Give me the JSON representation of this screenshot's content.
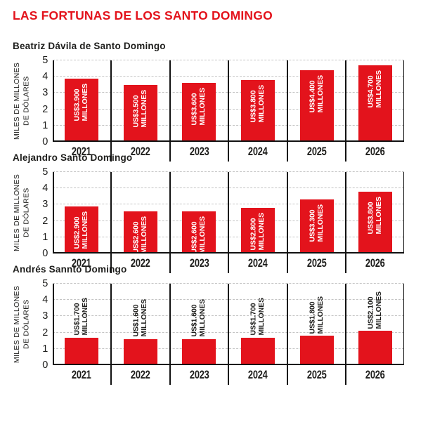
{
  "title": "LAS FORTUNAS DE LOS SANTO DOMINGO",
  "colors": {
    "accent_red": "#e3131c",
    "bar_red": "#e3131c",
    "grid": "#c4c4c4",
    "axis": "#111111",
    "text": "#1d1d1b",
    "bar_label_inside": "#ffffff",
    "bar_label_outside": "#1d1d1b"
  },
  "chart_data": [
    {
      "type": "bar",
      "title": "Beatriz Dávila de Santo Domingo",
      "categories": [
        "2021",
        "2022",
        "2023",
        "2024",
        "2025",
        "2026"
      ],
      "values": [
        3.9,
        3.5,
        3.6,
        3.8,
        4.4,
        4.7
      ],
      "bar_labels": [
        "US$3.900\nMILLONES",
        "US$3.500\nMILLONES",
        "US$3.600\nMILLONES",
        "US$3.800\nMILLONES",
        "US$4.400\nMILLONES",
        "US$4.700\nMILLONES"
      ],
      "value_label_position": "inside",
      "xlabel": "",
      "ylabel": "MILES DE MILLONES\nDE DÓLARES",
      "ylim": [
        0,
        5
      ],
      "yticks": [
        0,
        1,
        2,
        3,
        4,
        5
      ],
      "grid": "horizontal-dashed",
      "legend": "none"
    },
    {
      "type": "bar",
      "title": "Alejandro Santo Domingo",
      "categories": [
        "2021",
        "2022",
        "2023",
        "2024",
        "2025",
        "2026"
      ],
      "values": [
        2.9,
        2.6,
        2.6,
        2.8,
        3.3,
        3.8
      ],
      "bar_labels": [
        "US$2.900\nMILLONES",
        "US$2.600\nMILLONES",
        "US$2.600\nMILLONES",
        "US$2.800\nMILLONES",
        "US$3.300\nMILLONES",
        "US$3.800\nMILLONES"
      ],
      "value_label_position": "inside",
      "xlabel": "",
      "ylabel": "MILES DE MILLONES\nDE DÓLARES",
      "ylim": [
        0,
        5
      ],
      "yticks": [
        0,
        1,
        2,
        3,
        4,
        5
      ],
      "grid": "horizontal-dashed",
      "legend": "none"
    },
    {
      "type": "bar",
      "title": "Andrés Sannto Domingo",
      "categories": [
        "2021",
        "2022",
        "2023",
        "2024",
        "2025",
        "2026"
      ],
      "values": [
        1.7,
        1.6,
        1.6,
        1.7,
        1.8,
        2.1
      ],
      "bar_labels": [
        "US$1.700\nMILLONES",
        "US$1.600\nMILLONES",
        "US$1.600\nMILLONES",
        "US$1.700\nMILLONES",
        "US$1.800\nMILLONES",
        "US$2.100\nMILLONES"
      ],
      "value_label_position": "outside",
      "xlabel": "",
      "ylabel": "MILES DE MILLONES\nDE DÓLARES",
      "ylim": [
        0,
        5
      ],
      "yticks": [
        0,
        1,
        2,
        3,
        4,
        5
      ],
      "grid": "horizontal-dashed",
      "legend": "none"
    }
  ]
}
